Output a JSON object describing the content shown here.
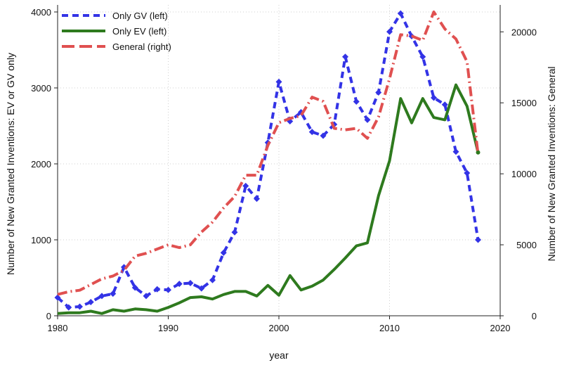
{
  "chart_data": {
    "type": "line",
    "xlabel": "year",
    "ylabel_left": "Number of New Granted Inventions: EV or GV only",
    "ylabel_right": "Number of New Granted Inventions: General",
    "xlim": [
      1980,
      2020
    ],
    "ylim_left": [
      0,
      4000
    ],
    "ylim_right": [
      0,
      21400
    ],
    "x_ticks": [
      1980,
      1990,
      2000,
      2010,
      2020
    ],
    "y_ticks_left": [
      0,
      1000,
      2000,
      3000,
      4000
    ],
    "y_ticks_right": [
      0,
      5000,
      10000,
      15000,
      20000
    ],
    "grid": "dotted, major ticks",
    "legend_position": "top-left",
    "x": [
      1980,
      1981,
      1982,
      1983,
      1984,
      1985,
      1986,
      1987,
      1988,
      1989,
      1990,
      1991,
      1992,
      1993,
      1994,
      1995,
      1996,
      1997,
      1998,
      1999,
      2000,
      2001,
      2002,
      2003,
      2004,
      2005,
      2006,
      2007,
      2008,
      2009,
      2010,
      2011,
      2012,
      2013,
      2014,
      2015,
      2016,
      2017,
      2018
    ],
    "series": [
      {
        "name": "Only GV (left)",
        "axis": "left",
        "color": "#3333e6",
        "style": "dashed",
        "marker": "diamond",
        "values": [
          240,
          110,
          120,
          180,
          260,
          290,
          640,
          370,
          260,
          350,
          340,
          420,
          430,
          360,
          470,
          830,
          1100,
          1710,
          1540,
          2280,
          3080,
          2560,
          2680,
          2420,
          2370,
          2520,
          3410,
          2820,
          2580,
          2940,
          3740,
          3980,
          3680,
          3410,
          2870,
          2780,
          2160,
          1880,
          1000
        ]
      },
      {
        "name": "Only EV (left)",
        "axis": "left",
        "color": "#2e7a1e",
        "style": "solid",
        "marker": "none",
        "values": [
          30,
          40,
          40,
          60,
          30,
          80,
          60,
          90,
          80,
          60,
          110,
          170,
          240,
          250,
          220,
          280,
          320,
          320,
          260,
          400,
          270,
          530,
          340,
          390,
          470,
          610,
          760,
          920,
          960,
          1580,
          2040,
          2860,
          2540,
          2860,
          2610,
          2580,
          3040,
          2760,
          2150
        ]
      },
      {
        "name": "General (right)",
        "axis": "right",
        "color": "#e05050",
        "style": "dash-dot",
        "marker": "none",
        "values": [
          1500,
          1700,
          1800,
          2200,
          2600,
          2800,
          3200,
          4200,
          4400,
          4700,
          5000,
          4800,
          5000,
          5900,
          6600,
          7600,
          8400,
          9900,
          9900,
          12000,
          13600,
          13900,
          14100,
          15400,
          15100,
          13200,
          13100,
          13200,
          12500,
          14000,
          16700,
          19800,
          19700,
          19400,
          21400,
          20200,
          19500,
          17900,
          11400
        ]
      }
    ]
  }
}
